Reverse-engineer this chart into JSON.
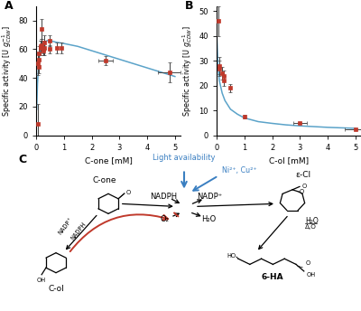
{
  "panel_A": {
    "scatter_x": [
      0.05,
      0.05,
      0.1,
      0.1,
      0.1,
      0.15,
      0.15,
      0.2,
      0.2,
      0.25,
      0.25,
      0.3,
      0.3,
      0.5,
      0.5,
      0.75,
      0.9,
      2.5,
      4.8
    ],
    "scatter_y": [
      8,
      50,
      48,
      53,
      57,
      62,
      61,
      63,
      74,
      59,
      60,
      65,
      61,
      60,
      66,
      61,
      61,
      52,
      44
    ],
    "scatter_yerr": [
      14,
      8,
      5,
      4,
      5,
      4,
      5,
      4,
      7,
      3,
      3,
      5,
      5,
      3,
      4,
      4,
      4,
      3,
      7
    ],
    "scatter_xerr": [
      0,
      0,
      0,
      0,
      0,
      0,
      0,
      0,
      0,
      0,
      0,
      0,
      0,
      0,
      0,
      0,
      0,
      0.25,
      0.4
    ],
    "fit_x": [
      0.02,
      0.05,
      0.1,
      0.15,
      0.2,
      0.3,
      0.4,
      0.5,
      0.7,
      1.0,
      1.5,
      2.0,
      2.5,
      3.0,
      3.5,
      4.0,
      4.5,
      5.0
    ],
    "fit_y": [
      18,
      36,
      52,
      59,
      62,
      65,
      66,
      66,
      65,
      64,
      62,
      59,
      56,
      53,
      50,
      47,
      44,
      41
    ],
    "xlabel": "C-one [mM]",
    "xlim": [
      0,
      5.2
    ],
    "ylim": [
      0,
      90
    ],
    "yticks": [
      0,
      20,
      40,
      60,
      80
    ],
    "xticks": [
      0,
      1,
      2,
      3,
      4,
      5
    ],
    "title": "A"
  },
  "panel_B": {
    "scatter_x": [
      0.05,
      0.1,
      0.1,
      0.2,
      0.25,
      0.25,
      0.5,
      1.0,
      3.0,
      5.0
    ],
    "scatter_y": [
      46,
      28,
      27,
      25,
      24,
      22,
      19,
      7.5,
      5,
      2.5
    ],
    "scatter_yerr": [
      6,
      3.5,
      3,
      2.5,
      2,
      2,
      1.5,
      0.8,
      0.5,
      0.3
    ],
    "scatter_xerr": [
      0,
      0,
      0,
      0,
      0,
      0,
      0,
      0,
      0.25,
      0.4
    ],
    "fit_x": [
      0.01,
      0.05,
      0.1,
      0.2,
      0.3,
      0.5,
      0.75,
      1.0,
      1.5,
      2.0,
      2.5,
      3.0,
      4.0,
      5.0
    ],
    "fit_y": [
      39,
      28,
      22,
      17,
      14,
      10.5,
      8.5,
      7.0,
      5.5,
      4.8,
      4.2,
      3.8,
      3.2,
      2.8
    ],
    "xlabel": "C-ol [mM]",
    "xlim": [
      0,
      5.2
    ],
    "ylim": [
      0,
      52
    ],
    "yticks": [
      0,
      10,
      20,
      30,
      40,
      50
    ],
    "xticks": [
      0,
      1,
      2,
      3,
      4,
      5
    ],
    "title": "B"
  },
  "ylabel": "Specific activity [U $g_{CDW}^{-1}$]",
  "scatter_color": "#c0392b",
  "fit_color": "#5ba3c9",
  "ecolor": "#444444",
  "background_color": "#ffffff",
  "light_color": "#3a7fc1",
  "ni_cu_color": "#3a7fc1",
  "red_color": "#c0392b"
}
